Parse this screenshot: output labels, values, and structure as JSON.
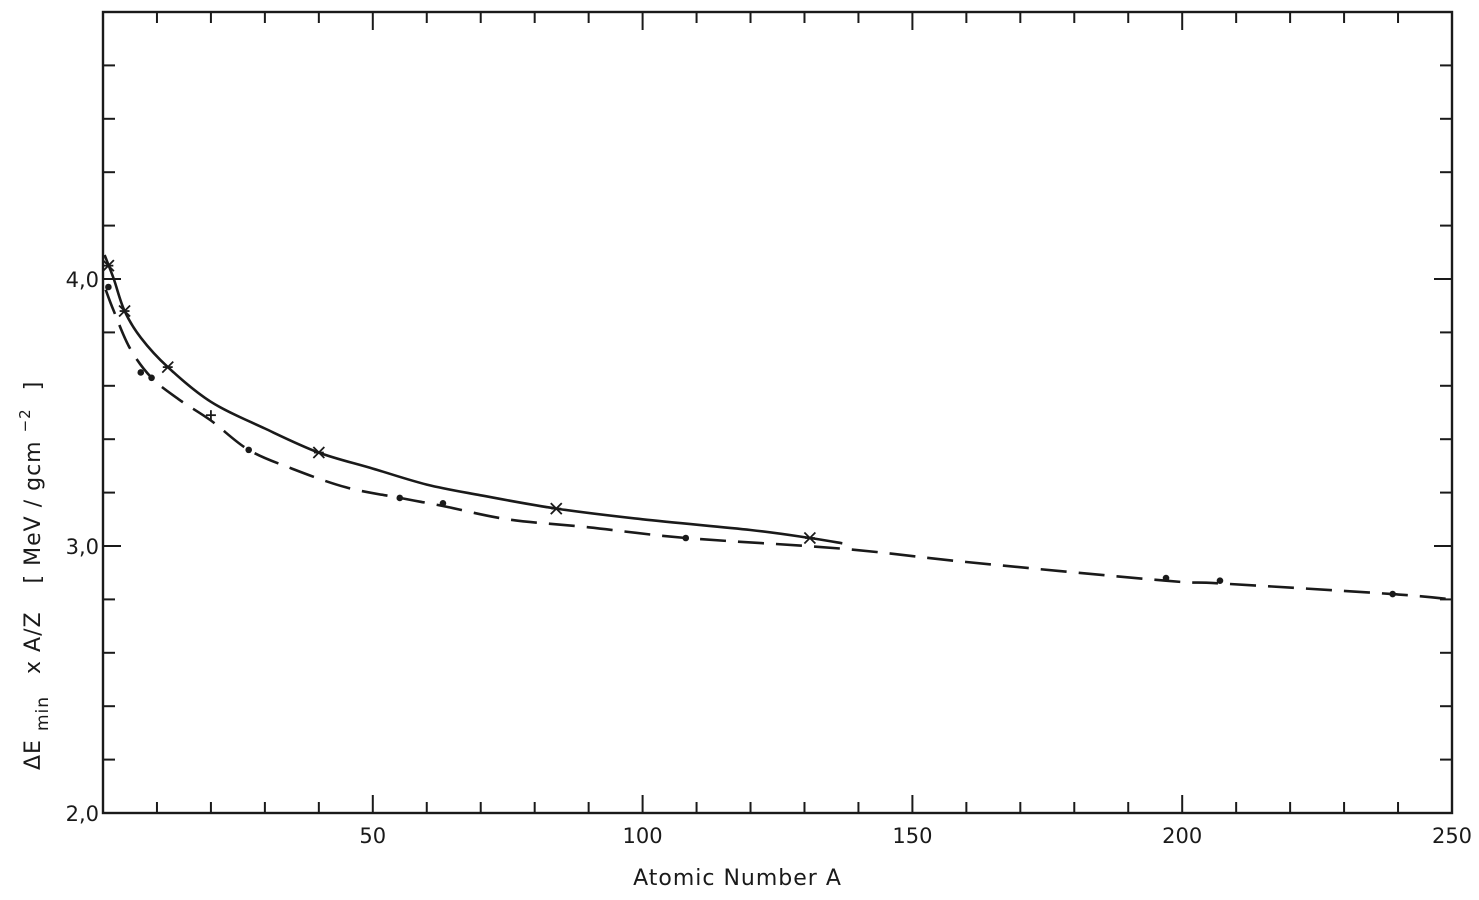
{
  "chart_data": {
    "type": "line",
    "xlabel": "Atomic Number A",
    "ylabel": {
      "delta": "ΔE",
      "subscript": "min",
      "rest": "x A/Z",
      "units_open": "[ MeV / gcm",
      "units_exp": "−2",
      "units_close": "]"
    },
    "xlim": [
      0,
      250
    ],
    "ylim": [
      2.0,
      5.0
    ],
    "xticks": [
      {
        "value": 50,
        "label": "50"
      },
      {
        "value": 100,
        "label": "100"
      },
      {
        "value": 150,
        "label": "150"
      },
      {
        "value": 200,
        "label": "200"
      },
      {
        "value": 250,
        "label": "250"
      }
    ],
    "x_minor_step": 10,
    "yticks": [
      {
        "value": 2.0,
        "label": "2,0"
      },
      {
        "value": 3.0,
        "label": "3,0"
      },
      {
        "value": 4.0,
        "label": "4,0"
      }
    ],
    "y_minor_step": 0.2,
    "grid": false,
    "legend": "none",
    "series": [
      {
        "style": "solid",
        "curve": [
          [
            0.3,
            4.09
          ],
          [
            2,
            4.0
          ],
          [
            4,
            3.88
          ],
          [
            7,
            3.78
          ],
          [
            12,
            3.67
          ],
          [
            20,
            3.54
          ],
          [
            30,
            3.44
          ],
          [
            40,
            3.35
          ],
          [
            50,
            3.29
          ],
          [
            60,
            3.23
          ],
          [
            70,
            3.19
          ],
          [
            84,
            3.14
          ],
          [
            100,
            3.1
          ],
          [
            120,
            3.06
          ],
          [
            131,
            3.03
          ],
          [
            137,
            3.01
          ]
        ],
        "markers": "star",
        "points": [
          [
            1,
            4.05
          ],
          [
            4,
            3.88
          ],
          [
            12,
            3.67
          ],
          [
            40,
            3.35
          ],
          [
            84,
            3.14
          ],
          [
            131,
            3.03
          ]
        ]
      },
      {
        "style": "dashed",
        "curve": [
          [
            0.5,
            3.96
          ],
          [
            2,
            3.88
          ],
          [
            5,
            3.74
          ],
          [
            9,
            3.63
          ],
          [
            14,
            3.55
          ],
          [
            20,
            3.47
          ],
          [
            27,
            3.36
          ],
          [
            35,
            3.29
          ],
          [
            45,
            3.22
          ],
          [
            55,
            3.18
          ],
          [
            63,
            3.15
          ],
          [
            75,
            3.1
          ],
          [
            90,
            3.07
          ],
          [
            108,
            3.03
          ],
          [
            137,
            2.99
          ],
          [
            160,
            2.94
          ],
          [
            197,
            2.87
          ],
          [
            207,
            2.86
          ],
          [
            239,
            2.82
          ],
          [
            250,
            2.8
          ]
        ],
        "markers": "dot",
        "points": [
          [
            1,
            3.97
          ],
          [
            7,
            3.65
          ],
          [
            9,
            3.63
          ],
          [
            27,
            3.36
          ],
          [
            55,
            3.18
          ],
          [
            63,
            3.16
          ],
          [
            108,
            3.03
          ],
          [
            197,
            2.88
          ],
          [
            207,
            2.87
          ],
          [
            239,
            2.82
          ]
        ],
        "extra_points": [
          {
            "marker": "plus",
            "point": [
              20,
              3.49
            ]
          }
        ]
      }
    ]
  }
}
